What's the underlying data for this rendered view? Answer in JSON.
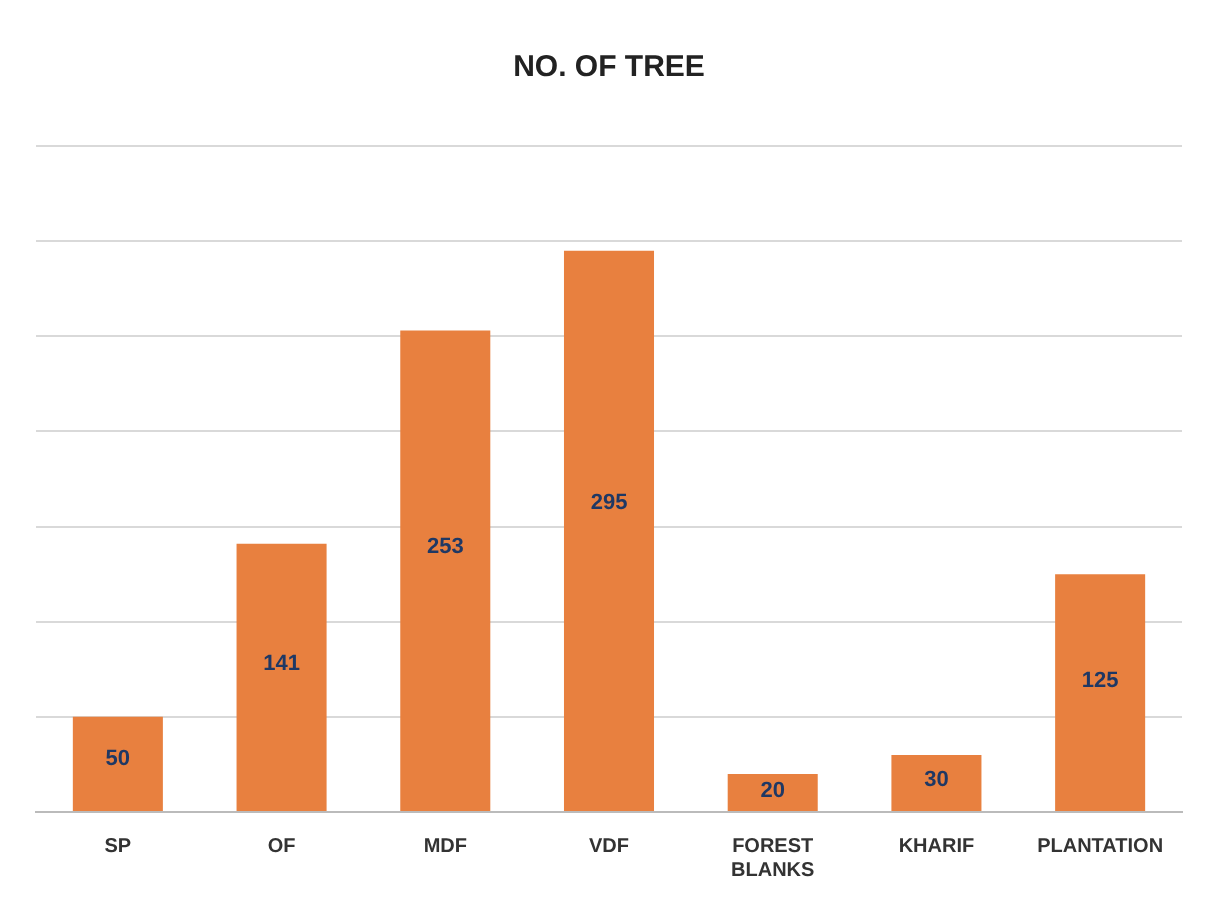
{
  "chart_data": {
    "type": "bar",
    "title": "NO. OF TREE",
    "categories": [
      "SP",
      "OF",
      "MDF",
      "VDF",
      "FOREST BLANKS",
      "KHARIF",
      "PLANTATION"
    ],
    "values": [
      50,
      141,
      253,
      295,
      20,
      30,
      125
    ],
    "color": "#e8803f",
    "ylim": [
      0,
      350
    ],
    "yticks": [
      {
        "value": 0,
        "label": null
      },
      {
        "value": 50,
        "label": null
      },
      {
        "value": 100,
        "label": null
      },
      {
        "value": 150,
        "label": null
      },
      {
        "value": 200,
        "label": null
      },
      {
        "value": 250,
        "label": null
      },
      {
        "value": 300,
        "label": null
      },
      {
        "value": 350,
        "label": null
      }
    ],
    "tick_labels": "x",
    "grid": "y",
    "data_labels": true
  }
}
